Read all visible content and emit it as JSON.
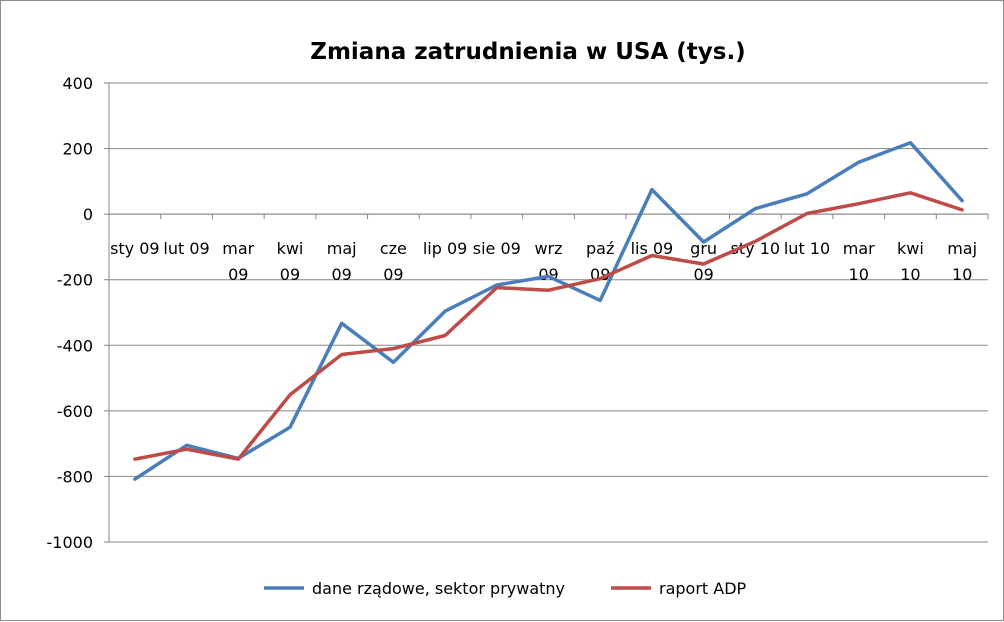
{
  "chart_data": {
    "type": "line",
    "title": "Zmiana zatrudnienia w USA (tys.)",
    "xlabel": "",
    "ylabel": "",
    "ylim": [
      -1000,
      400
    ],
    "yticks": [
      400,
      200,
      0,
      -200,
      -400,
      -600,
      -800,
      -1000
    ],
    "ytick_labels": [
      "400",
      "200",
      "0",
      "-200",
      "-400",
      "-600",
      "-800",
      "-1000"
    ],
    "grid": true,
    "legend_position": "bottom",
    "categories": [
      [
        "sty 09"
      ],
      [
        "lut 09"
      ],
      [
        "mar",
        "09"
      ],
      [
        "kwi",
        "09"
      ],
      [
        "maj",
        "09"
      ],
      [
        "cze",
        "09"
      ],
      [
        "lip 09"
      ],
      [
        "sie 09"
      ],
      [
        "wrz",
        "09"
      ],
      [
        "paź",
        "09"
      ],
      [
        "lis 09"
      ],
      [
        "gru",
        "09"
      ],
      [
        "sty 10"
      ],
      [
        "lut 10"
      ],
      [
        "mar",
        "10"
      ],
      [
        "kwi",
        "10"
      ],
      [
        "maj",
        "10"
      ]
    ],
    "series": [
      {
        "name": "dane rządowe, sektor prywatny",
        "color": "#4a7ebb",
        "values": [
          -808,
          -705,
          -745,
          -650,
          -333,
          -452,
          -296,
          -216,
          -190,
          -263,
          75,
          -85,
          17,
          62,
          158,
          218,
          41
        ]
      },
      {
        "name": "raport ADP",
        "color": "#be4b48",
        "values": [
          -747,
          -717,
          -747,
          -551,
          -428,
          -410,
          -370,
          -224,
          -232,
          -197,
          -126,
          -152,
          -83,
          2,
          32,
          65,
          13
        ]
      }
    ]
  }
}
